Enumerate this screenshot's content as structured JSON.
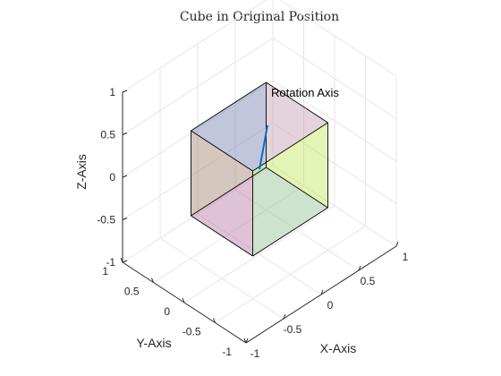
{
  "chart_data": {
    "type": "3d-surface",
    "title": "Cube in Original Position",
    "xlabel": "X-Axis",
    "ylabel": "Y-Axis",
    "zlabel": "Z-Axis",
    "xlim": [
      -1,
      1
    ],
    "ylim": [
      -1,
      1
    ],
    "zlim": [
      -1,
      1
    ],
    "grid": true,
    "x_ticks": [
      {
        "value": -1,
        "label": "-1"
      },
      {
        "value": -0.5,
        "label": "-0.5"
      },
      {
        "value": 0,
        "label": "0"
      },
      {
        "value": 0.5,
        "label": "0.5"
      },
      {
        "value": 1,
        "label": "1"
      }
    ],
    "y_ticks": [
      {
        "value": -1,
        "label": "-1"
      },
      {
        "value": -0.5,
        "label": "-0.5"
      },
      {
        "value": 0,
        "label": "0"
      },
      {
        "value": 0.5,
        "label": "0.5"
      },
      {
        "value": 1,
        "label": "1"
      }
    ],
    "z_ticks": [
      {
        "value": -1,
        "label": "-1"
      },
      {
        "value": -0.5,
        "label": "-0.5"
      },
      {
        "value": 0,
        "label": "0"
      },
      {
        "value": 0.5,
        "label": "0.5"
      },
      {
        "value": 1,
        "label": "1"
      }
    ],
    "cube": {
      "center": [
        0,
        0,
        0
      ],
      "half_size": 0.5,
      "faces": [
        {
          "name": "bottom",
          "color": "#5a6bff"
        },
        {
          "name": "left",
          "color": "#1f7f7f"
        },
        {
          "name": "back",
          "color": "#d7c27a"
        },
        {
          "name": "right",
          "color": "#ff7a5a"
        },
        {
          "name": "front",
          "color": "#b5ff3a"
        },
        {
          "name": "top",
          "color": "#b37ad6"
        }
      ],
      "edge_color": "#000000"
    },
    "rotation_axis": {
      "label": "Rotation Axis",
      "start": [
        0,
        0,
        0
      ],
      "end": [
        0,
        0,
        0.6
      ],
      "color": "#0072BD"
    }
  }
}
